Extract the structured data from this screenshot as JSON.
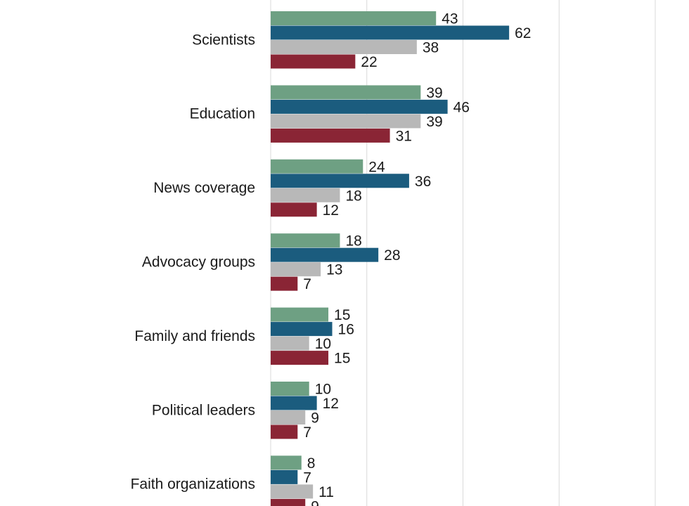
{
  "chart_data": {
    "type": "bar",
    "orientation": "horizontal",
    "categories": [
      "Scientists",
      "Education",
      "News coverage",
      "Advocacy groups",
      "Family and friends",
      "Political leaders",
      "Faith organizations"
    ],
    "series": [
      {
        "values": [
          43,
          39,
          24,
          18,
          15,
          10,
          8
        ],
        "color": "#6ea083"
      },
      {
        "values": [
          62,
          46,
          36,
          28,
          16,
          12,
          7
        ],
        "color": "#1b5c7e"
      },
      {
        "values": [
          38,
          39,
          18,
          13,
          10,
          9,
          11
        ],
        "color": "#b8b8b8"
      },
      {
        "values": [
          22,
          31,
          12,
          7,
          15,
          7,
          9
        ],
        "color": "#8a2535"
      }
    ],
    "xlim": [
      0,
      100
    ],
    "grid": true,
    "legend": "none",
    "title": "",
    "xlabel": "",
    "ylabel": ""
  }
}
